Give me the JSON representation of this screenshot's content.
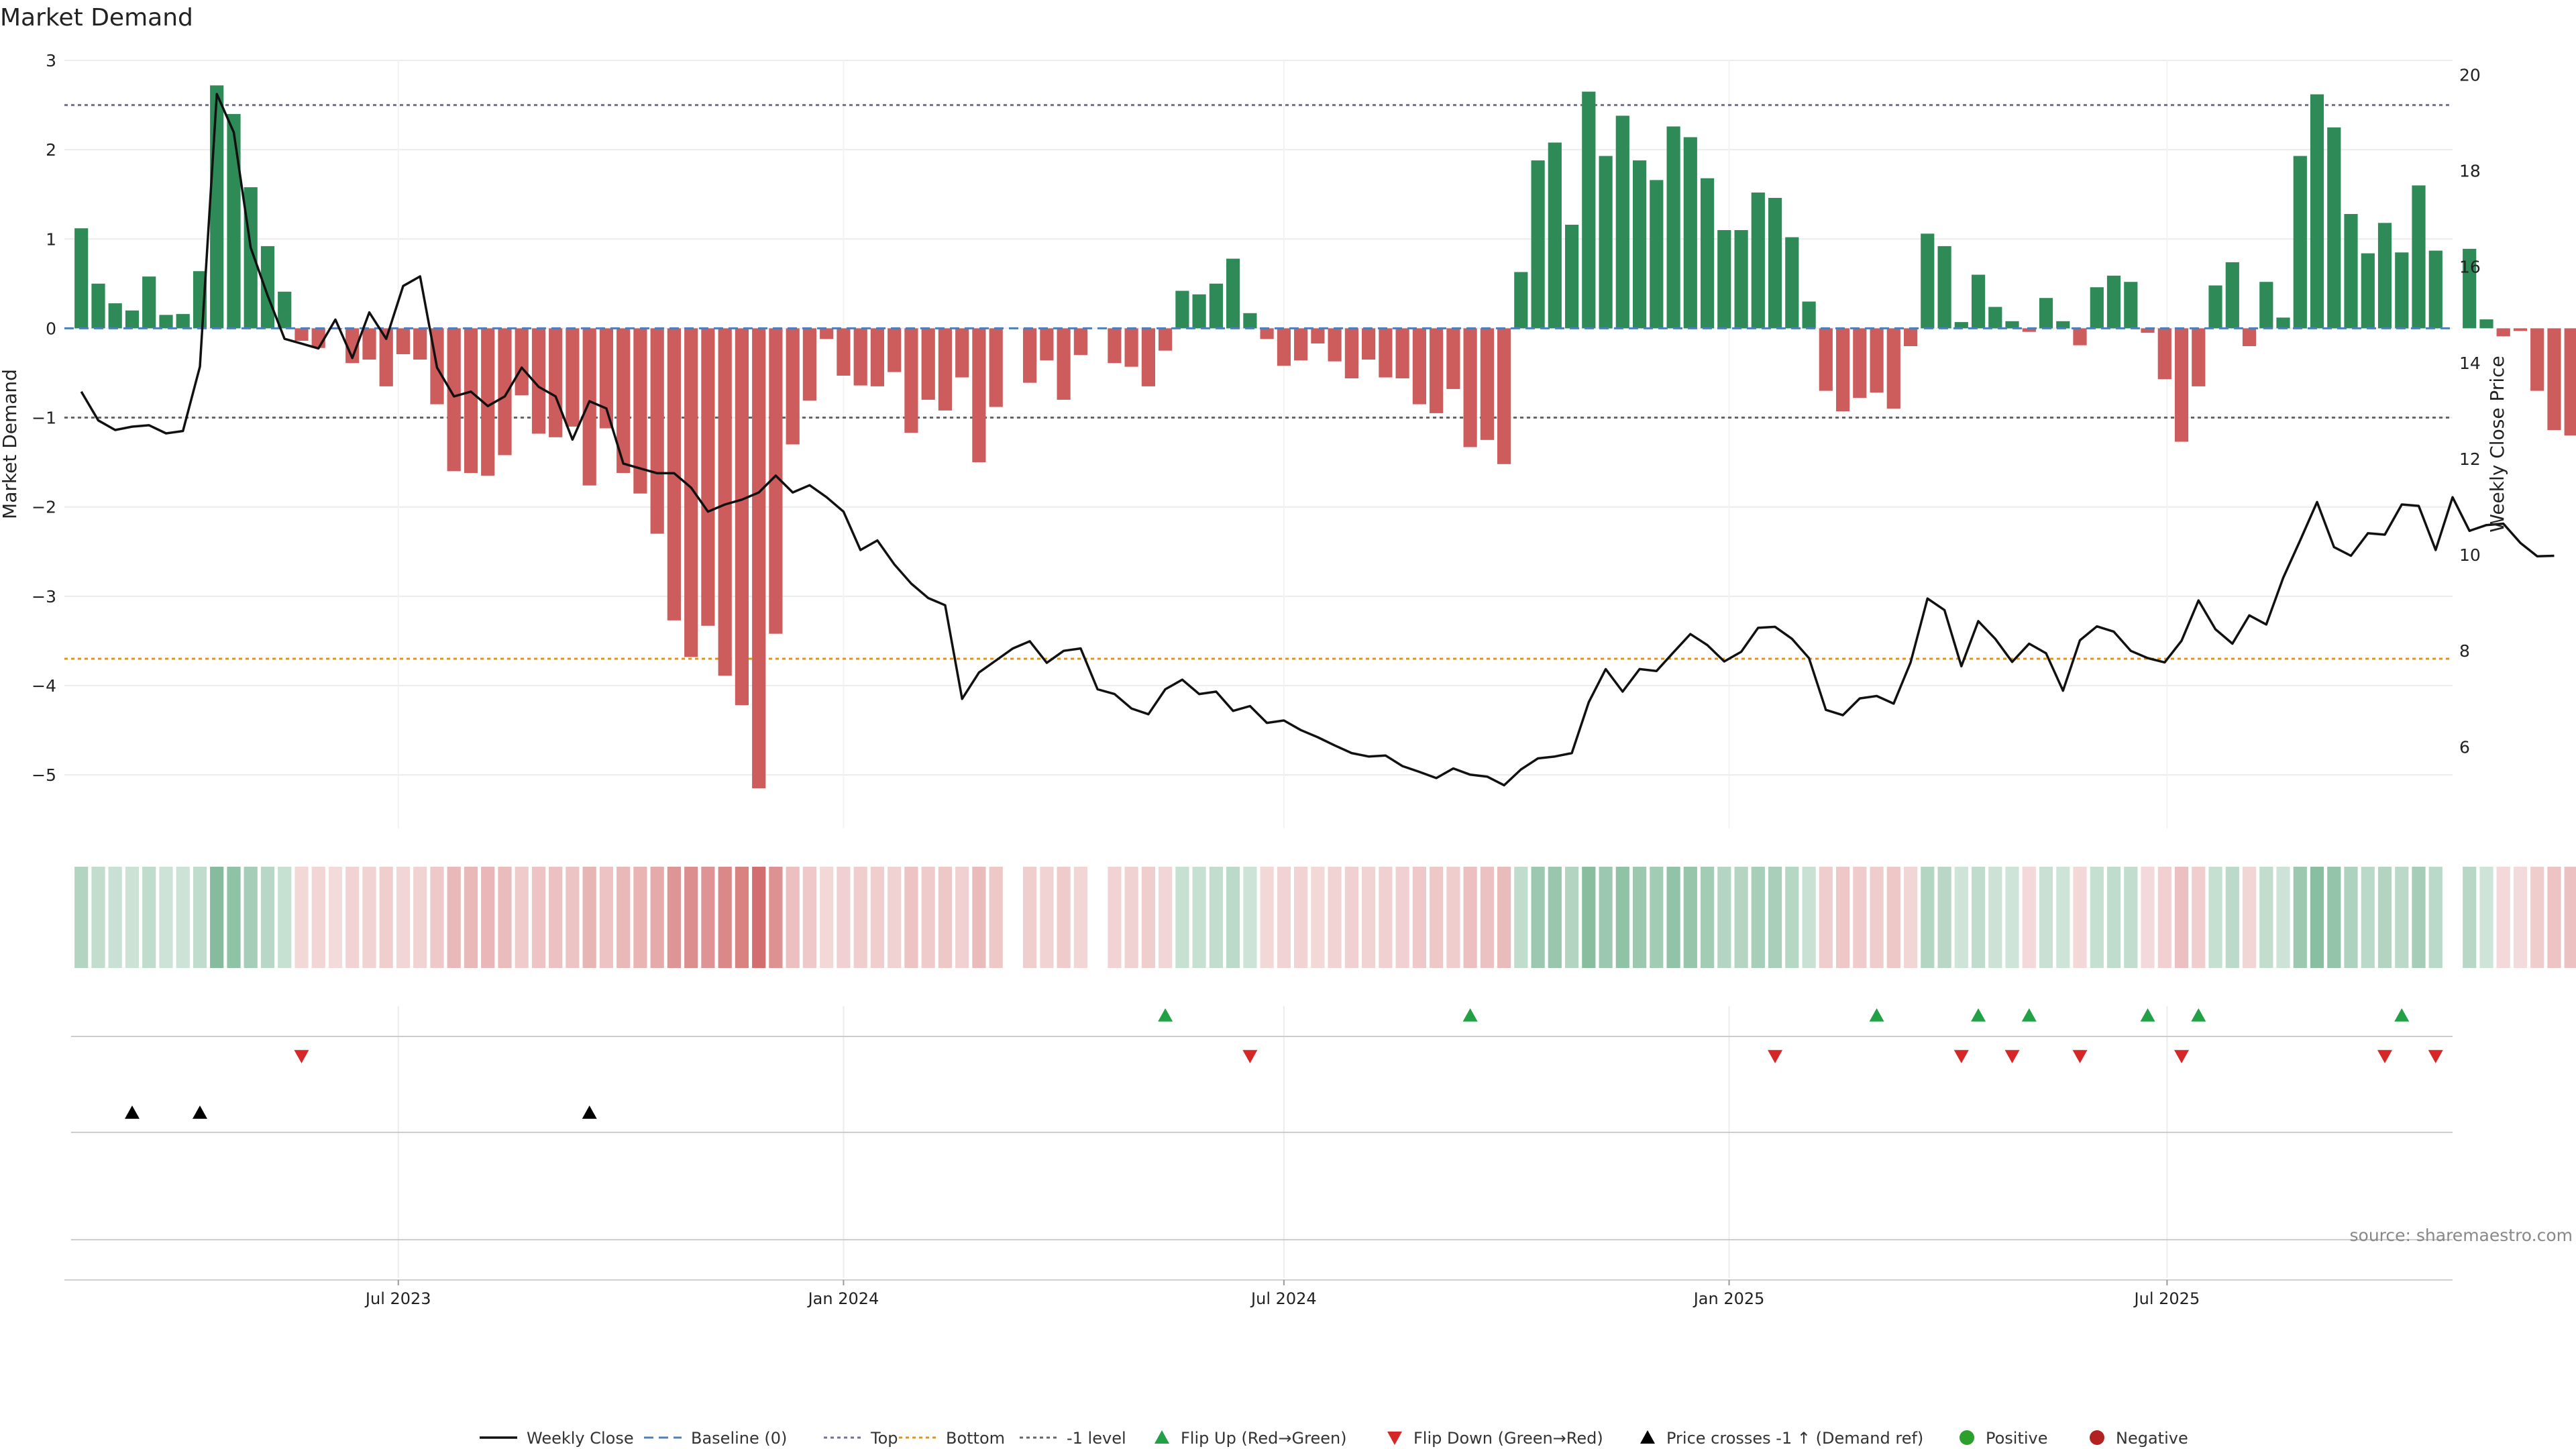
{
  "chart_data": {
    "type": "bar",
    "title": "Market Demand",
    "ylabel_left": "Market Demand",
    "ylabel_right": "Weekly Close Price",
    "source": "source: sharemaestro.com",
    "y_left_ticks": [
      3,
      2,
      1,
      0,
      -1,
      -2,
      -3,
      -4,
      -5
    ],
    "y_left_tick_labels": [
      "3",
      "2",
      "1",
      "0",
      "−1",
      "−2",
      "−3",
      "−4",
      "−5"
    ],
    "y_left_range": [
      -5.6,
      3.0
    ],
    "y_right_ticks": [
      20,
      18,
      16,
      14,
      12,
      10,
      8,
      6
    ],
    "y_right_tick_labels": [
      "20",
      "18",
      "16",
      "14",
      "12",
      "10",
      "8",
      "6"
    ],
    "y_right_range": [
      4.3,
      20.3
    ],
    "x_range": [
      "2023-02-13",
      "2025-10-27"
    ],
    "x_ticks": [
      "2023-07-01",
      "2024-01-01",
      "2024-07-01",
      "2025-01-01",
      "2025-07-01"
    ],
    "x_tick_labels": [
      "Jul 2023",
      "Jan 2024",
      "Jul 2024",
      "Jan 2025",
      "Jul 2025"
    ],
    "reference_lines": {
      "top": 2.5,
      "bottom": -3.7,
      "minus_one": -1.0,
      "baseline": 0
    },
    "weeks_start": "2023-02-20",
    "week_step_days": 7,
    "demand": [
      1.12,
      0.5,
      0.28,
      0.2,
      0.58,
      0.15,
      0.16,
      0.64,
      2.72,
      2.4,
      1.58,
      0.92,
      0.41,
      -0.14,
      -0.22,
      -0.01,
      -0.39,
      -0.35,
      -0.65,
      -0.29,
      -0.35,
      -0.85,
      -1.6,
      -1.62,
      -1.65,
      -1.42,
      -0.75,
      -1.18,
      -1.22,
      -1.1,
      -1.76,
      -1.12,
      -1.62,
      -1.85,
      -2.3,
      -3.27,
      -3.68,
      -3.33,
      -3.89,
      -4.22,
      -5.15,
      -3.42,
      -1.3,
      -0.81,
      -0.12,
      -0.53,
      -0.64,
      -0.65,
      -0.49,
      -1.17,
      -0.8,
      -0.92,
      -0.55,
      -1.5,
      -0.88,
      null,
      -0.61,
      -0.36,
      -0.8,
      -0.3,
      null,
      -0.39,
      -0.43,
      -0.65,
      -0.25,
      0.42,
      0.38,
      0.5,
      0.78,
      0.17,
      -0.12,
      -0.42,
      -0.36,
      -0.17,
      -0.37,
      -0.56,
      -0.35,
      -0.55,
      -0.56,
      -0.85,
      -0.95,
      -0.68,
      -1.33,
      -1.25,
      -1.52,
      0.63,
      1.88,
      2.08,
      1.16,
      2.65,
      1.93,
      2.38,
      1.88,
      1.66,
      2.26,
      2.14,
      1.68,
      1.1,
      1.1,
      1.52,
      1.46,
      1.02,
      0.3,
      -0.7,
      -0.93,
      -0.78,
      -0.72,
      -0.9,
      -0.2,
      1.06,
      0.92,
      0.07,
      0.6,
      0.24,
      0.08,
      -0.04,
      0.34,
      0.08,
      -0.19,
      0.46,
      0.59,
      0.52,
      -0.05,
      -0.57,
      -1.27,
      -0.65,
      0.48,
      0.74,
      -0.2,
      0.52,
      0.12,
      1.93,
      2.62,
      2.25,
      1.28,
      0.84,
      1.18,
      0.85,
      1.6,
      0.87,
      null,
      0.89,
      0.1,
      -0.09,
      -0.03,
      -0.7,
      -1.14,
      -1.2
    ],
    "close": [
      13.4,
      12.8,
      12.6,
      12.67,
      12.7,
      12.53,
      12.58,
      13.92,
      19.6,
      18.8,
      16.4,
      15.4,
      14.5,
      14.4,
      14.3,
      14.9,
      14.1,
      15.05,
      14.5,
      15.6,
      15.8,
      13.9,
      13.3,
      13.4,
      13.1,
      13.3,
      13.9,
      13.5,
      13.3,
      12.4,
      13.2,
      13.05,
      11.9,
      11.8,
      11.7,
      11.7,
      11.4,
      10.9,
      11.05,
      11.15,
      11.3,
      11.65,
      11.3,
      11.45,
      11.2,
      10.9,
      10.1,
      10.3,
      9.8,
      9.4,
      9.1,
      8.95,
      7.0,
      7.55,
      7.8,
      8.05,
      8.2,
      7.75,
      8.0,
      8.05,
      7.2,
      7.1,
      6.8,
      6.68,
      7.2,
      7.4,
      7.1,
      7.15,
      6.75,
      6.85,
      6.5,
      6.55,
      6.35,
      6.2,
      6.03,
      5.87,
      5.8,
      5.82,
      5.6,
      5.48,
      5.35,
      5.55,
      5.42,
      5.38,
      5.2,
      5.53,
      5.76,
      5.8,
      5.87,
      6.93,
      7.62,
      7.15,
      7.62,
      7.58,
      7.97,
      8.35,
      8.12,
      7.78,
      7.98,
      8.48,
      8.5,
      8.25,
      7.85,
      6.77,
      6.66,
      7.01,
      7.06,
      6.9,
      7.76,
      9.09,
      8.85,
      7.68,
      8.62,
      8.25,
      7.77,
      8.15,
      7.95,
      7.17,
      8.22,
      8.51,
      8.4,
      8.0,
      7.85,
      7.76,
      8.21,
      9.05,
      8.45,
      8.15,
      8.74,
      8.55,
      9.52,
      10.3,
      11.1,
      10.16,
      9.98,
      10.45,
      10.42,
      11.05,
      11.02,
      10.1,
      11.2,
      10.5,
      10.62,
      10.65,
      10.25,
      9.97,
      9.98
    ],
    "flip_up_weeks": [
      64,
      82,
      106,
      112,
      115,
      122,
      125,
      137
    ],
    "flip_down_weeks": [
      13,
      69,
      100,
      111,
      114,
      118,
      124,
      136,
      139
    ],
    "price_cross_up_weeks": [
      3,
      7,
      30
    ],
    "legend": [
      "Weekly Close",
      "Baseline (0)",
      "Top",
      "Bottom",
      "-1 level",
      "Flip Up (Red→Green)",
      "Flip Down (Green→Red)",
      "Price crosses -1 ↑ (Demand ref)",
      "Positive",
      "Negative"
    ],
    "legend_position": "bottom-center",
    "grid": true
  },
  "colors": {
    "positive": "#2e8b57",
    "negative": "#cd5c5c",
    "line": "#111111",
    "baseline": "#4f7fb8",
    "top": "#76708a",
    "bottom": "#d9952a",
    "minus_one": "#666666",
    "flip_up": "#22a045",
    "flip_down": "#d62728",
    "price_cross": "#000000",
    "legend_positive": "#2ca02c",
    "legend_negative": "#b22222"
  }
}
